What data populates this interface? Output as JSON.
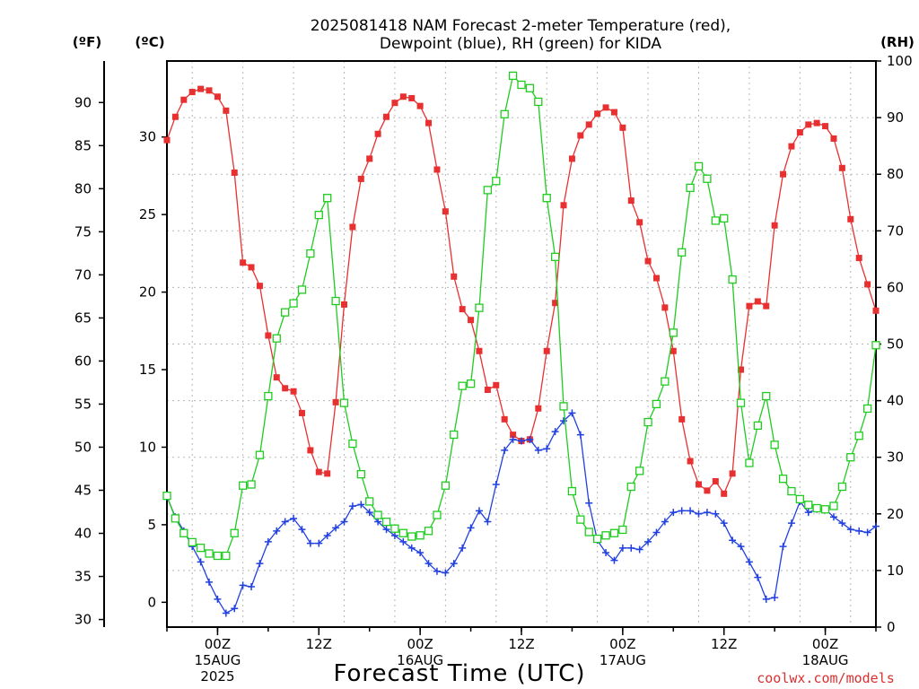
{
  "chart_data": {
    "type": "line",
    "title_line1": "2025081418 NAM Forecast 2-meter Temperature (red),",
    "title_line2": "Dewpoint (blue), RH (green) for KIDA",
    "unit_f": "(ºF)",
    "unit_c": "(ºC)",
    "unit_rh": "(RH)",
    "xlabel": "Forecast Time (UTC)",
    "credit": "coolwx.com/models",
    "x_range_hours": [
      18,
      102
    ],
    "x_ticks": [
      {
        "hour": 24,
        "time": "00Z",
        "date": "15AUG",
        "year": "2025"
      },
      {
        "hour": 36,
        "time": "12Z",
        "date": "",
        "year": ""
      },
      {
        "hour": 48,
        "time": "00Z",
        "date": "16AUG",
        "year": ""
      },
      {
        "hour": 60,
        "time": "12Z",
        "date": "",
        "year": ""
      },
      {
        "hour": 72,
        "time": "00Z",
        "date": "17AUG",
        "year": ""
      },
      {
        "hour": 84,
        "time": "12Z",
        "date": "",
        "year": ""
      },
      {
        "hour": 96,
        "time": "00Z",
        "date": "18AUG",
        "year": ""
      }
    ],
    "celsius_axis": {
      "range": [
        -1.6,
        34.9
      ],
      "ticks": [
        0,
        5,
        10,
        15,
        20,
        25,
        30
      ]
    },
    "fahrenheit_ticks": [
      30,
      35,
      40,
      45,
      50,
      55,
      60,
      65,
      70,
      75,
      80,
      85,
      90
    ],
    "rh_axis": {
      "range": [
        0,
        100
      ],
      "ticks": [
        0,
        10,
        20,
        30,
        40,
        50,
        60,
        70,
        80,
        90,
        100
      ]
    },
    "grid": true,
    "colors": {
      "temperature": "#e83030",
      "dewpoint": "#2040e0",
      "rh": "#20cc20",
      "credit": "#d93030"
    },
    "series": [
      {
        "key": "temperature",
        "x": [
          18,
          19,
          20,
          21,
          22,
          23,
          24,
          25,
          26,
          27,
          28,
          29,
          30,
          31,
          32,
          33,
          34,
          35,
          36,
          37,
          38,
          39,
          40,
          41,
          42,
          43,
          44,
          45,
          46,
          47,
          48,
          49,
          50,
          51,
          52,
          53,
          54,
          55,
          56,
          57,
          58,
          59,
          60,
          61,
          62,
          63,
          64,
          65,
          66,
          67,
          68,
          69,
          70,
          71,
          72,
          73,
          74,
          75,
          76,
          77,
          78,
          79,
          80,
          81,
          82,
          83,
          84,
          85,
          86,
          87,
          88,
          89,
          90,
          91,
          92,
          93,
          94,
          95,
          96,
          97,
          98,
          99,
          100,
          101,
          102
        ],
        "values": [
          29.8,
          31.3,
          32.4,
          32.9,
          33.1,
          33.0,
          32.6,
          31.7,
          27.7,
          21.9,
          21.6,
          20.4,
          17.2,
          14.5,
          13.8,
          13.6,
          12.2,
          9.8,
          8.4,
          8.3,
          12.9,
          19.2,
          24.2,
          27.3,
          28.6,
          30.2,
          31.3,
          32.2,
          32.6,
          32.5,
          32.0,
          30.9,
          27.9,
          25.2,
          21.0,
          18.9,
          18.2,
          16.2,
          13.7,
          14.0,
          11.8,
          10.8,
          10.4,
          10.5,
          12.5,
          16.2,
          19.3,
          25.6,
          28.6,
          30.1,
          30.8,
          31.5,
          31.9,
          31.6,
          30.6,
          25.9,
          24.5,
          22.0,
          20.9,
          19.0,
          16.2,
          11.8,
          9.1,
          7.6,
          7.2,
          7.8,
          7.0,
          8.3,
          15.0,
          19.1,
          19.4,
          19.1,
          24.3,
          27.6,
          29.4,
          30.3,
          30.8,
          30.9,
          30.7,
          29.9,
          28.0,
          24.7,
          22.2,
          20.5,
          18.8
        ]
      },
      {
        "key": "dewpoint",
        "x": [
          18,
          19,
          20,
          21,
          22,
          23,
          24,
          25,
          26,
          27,
          28,
          29,
          30,
          31,
          32,
          33,
          34,
          35,
          36,
          37,
          38,
          39,
          40,
          41,
          42,
          43,
          44,
          45,
          46,
          47,
          48,
          49,
          50,
          51,
          52,
          53,
          54,
          55,
          56,
          57,
          58,
          59,
          60,
          61,
          62,
          63,
          64,
          65,
          66,
          67,
          68,
          69,
          70,
          71,
          72,
          73,
          74,
          75,
          76,
          77,
          78,
          79,
          80,
          81,
          82,
          83,
          84,
          85,
          86,
          87,
          88,
          89,
          90,
          91,
          92,
          93,
          94,
          95,
          96,
          97,
          98,
          99,
          100,
          101,
          102
        ],
        "values": [
          6.8,
          5.5,
          4.6,
          3.6,
          2.6,
          1.3,
          0.2,
          -0.7,
          -0.4,
          1.1,
          1.0,
          2.5,
          3.9,
          4.6,
          5.2,
          5.4,
          4.7,
          3.8,
          3.8,
          4.3,
          4.8,
          5.2,
          6.2,
          6.3,
          5.8,
          5.2,
          4.7,
          4.3,
          3.9,
          3.5,
          3.2,
          2.5,
          2.0,
          1.9,
          2.5,
          3.5,
          4.8,
          5.9,
          5.2,
          7.6,
          9.8,
          10.5,
          10.4,
          10.5,
          9.8,
          9.9,
          11.0,
          11.7,
          12.2,
          10.8,
          6.4,
          4.0,
          3.2,
          2.7,
          3.5,
          3.5,
          3.4,
          3.9,
          4.5,
          5.2,
          5.8,
          5.9,
          5.9,
          5.7,
          5.8,
          5.7,
          5.1,
          4.0,
          3.6,
          2.6,
          1.6,
          0.2,
          0.3,
          3.6,
          5.1,
          6.5,
          5.8,
          6.0,
          6.0,
          5.5,
          5.1,
          4.7,
          4.6,
          4.5,
          4.9
        ]
      },
      {
        "key": "rh",
        "x": [
          18,
          19,
          20,
          21,
          22,
          23,
          24,
          25,
          26,
          27,
          28,
          29,
          30,
          31,
          32,
          33,
          34,
          35,
          36,
          37,
          38,
          39,
          40,
          41,
          42,
          43,
          44,
          45,
          46,
          47,
          48,
          49,
          50,
          51,
          52,
          53,
          54,
          55,
          56,
          57,
          58,
          59,
          60,
          61,
          62,
          63,
          64,
          65,
          66,
          67,
          68,
          69,
          70,
          71,
          72,
          73,
          74,
          75,
          76,
          77,
          78,
          79,
          80,
          81,
          82,
          83,
          84,
          85,
          86,
          87,
          88,
          89,
          90,
          91,
          92,
          93,
          94,
          95,
          96,
          97,
          98,
          99,
          100,
          101,
          102
        ],
        "values": [
          23.2,
          19.2,
          16.6,
          15.0,
          14.0,
          13.0,
          12.6,
          12.6,
          16.6,
          25.0,
          25.2,
          30.4,
          40.8,
          51.0,
          55.6,
          57.2,
          59.6,
          66.0,
          72.8,
          75.8,
          57.6,
          39.6,
          32.4,
          27.0,
          22.2,
          19.8,
          18.6,
          17.4,
          16.6,
          16.0,
          16.2,
          17.0,
          19.8,
          25.0,
          34.0,
          42.6,
          43.0,
          56.4,
          77.2,
          78.8,
          90.6,
          97.4,
          95.8,
          95.2,
          92.8,
          75.8,
          65.4,
          39.0,
          24.0,
          19.0,
          16.8,
          15.6,
          16.2,
          16.6,
          17.2,
          24.8,
          27.6,
          36.2,
          39.4,
          43.4,
          52.0,
          66.2,
          77.6,
          81.4,
          79.2,
          71.8,
          72.2,
          61.4,
          39.6,
          29.0,
          35.6,
          40.8,
          32.2,
          26.2,
          24.0,
          22.6,
          21.6,
          21.0,
          20.8,
          21.4,
          24.8,
          30.0,
          33.8,
          38.6,
          49.8
        ]
      }
    ]
  }
}
